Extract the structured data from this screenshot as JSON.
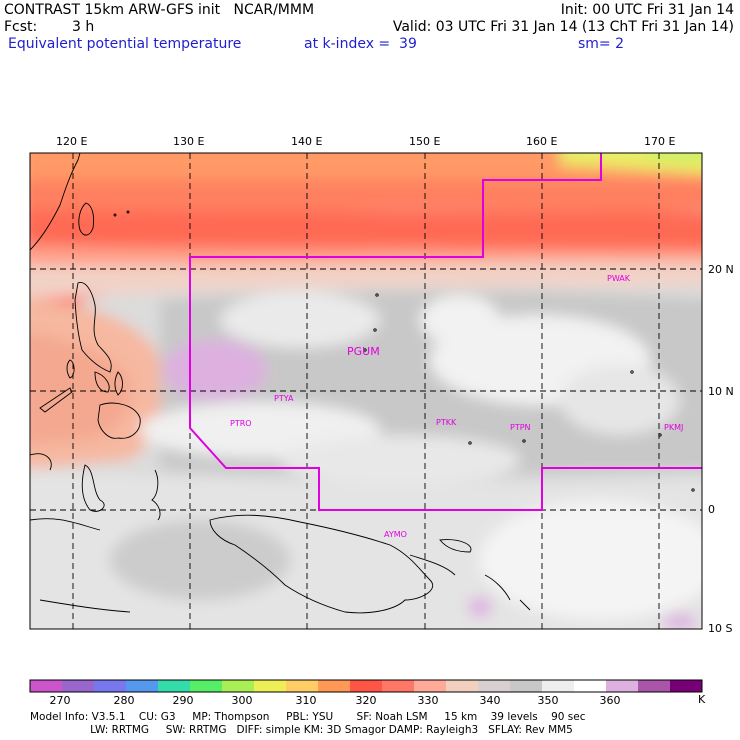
{
  "header": {
    "title": "CONTRAST 15km ARW-GFS init   NCAR/MMM",
    "init": "Init: 00 UTC Fri 31 Jan 14",
    "fcst_label": "Fcst:",
    "fcst_value": "3 h",
    "valid": "Valid: 03 UTC Fri 31 Jan 14 (13 ChT Fri 31 Jan 14)",
    "field": "Equivalent potential temperature",
    "level": "at k-index =  39",
    "smoothing": "sm= 2"
  },
  "map": {
    "lon_labels": [
      "120 E",
      "130 E",
      "140 E",
      "150 E",
      "160 E",
      "170 E"
    ],
    "lat_labels": [
      "20 N",
      "10 N",
      "0",
      "10 S"
    ],
    "stations": [
      {
        "id": "PGUM",
        "size": "large"
      },
      {
        "id": "PTYA",
        "size": "small"
      },
      {
        "id": "PTRO",
        "size": "small"
      },
      {
        "id": "PTKK",
        "size": "small"
      },
      {
        "id": "PTPN",
        "size": "small"
      },
      {
        "id": "PKMJ",
        "size": "small"
      },
      {
        "id": "PWAK",
        "size": "small"
      },
      {
        "id": "AYMO",
        "size": "small"
      }
    ],
    "domain_box_color": "#e000e0"
  },
  "colorbar": {
    "unit": "K",
    "tick_labels": [
      "270",
      "280",
      "290",
      "300",
      "310",
      "320",
      "330",
      "340",
      "350",
      "360"
    ],
    "colors": [
      "#cc55cc",
      "#9966cc",
      "#7777ee",
      "#5599ee",
      "#33ddaa",
      "#55ee66",
      "#aaee55",
      "#eeee55",
      "#ffcc66",
      "#ff9955",
      "#ff5544",
      "#ff7766",
      "#ffaa99",
      "#f2d0c0",
      "#d8d0d0",
      "#c8c8c8",
      "#eeeeee",
      "#ffffff",
      "#ddb0e0",
      "#aa55aa",
      "#770077"
    ]
  },
  "footer": {
    "line1": "Model Info: V3.5.1    CU: G3     MP: Thompson     PBL: YSU       SF: Noah LSM     15 km    39 levels    90 sec",
    "line2": "                  LW: RRTMG     SW: RRTMG   DIFF: simple KM: 3D Smagor DAMP: Rayleigh3   SFLAY: Rev MM5"
  }
}
